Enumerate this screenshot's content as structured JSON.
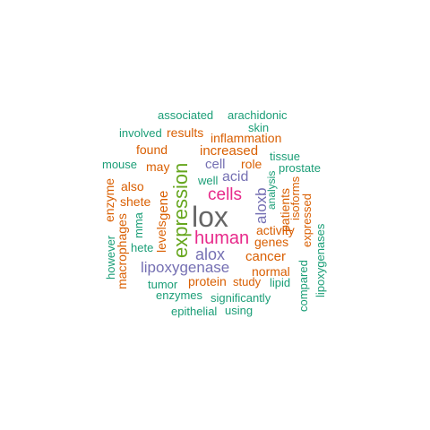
{
  "colors": {
    "green": "#1B9E77",
    "orange": "#D95F02",
    "purple": "#7570B3",
    "pink": "#E7298A",
    "olive": "#66A61E",
    "gray": "#666666"
  },
  "words": [
    {
      "text": "lox",
      "color": "gray"
    },
    {
      "text": "expression",
      "color": "olive"
    },
    {
      "text": "cells",
      "color": "pink"
    },
    {
      "text": "human",
      "color": "pink"
    },
    {
      "text": "alox",
      "color": "purple"
    },
    {
      "text": "aloxb",
      "color": "purple"
    },
    {
      "text": "lipoxygenase",
      "color": "purple"
    },
    {
      "text": "cell",
      "color": "purple"
    },
    {
      "text": "acid",
      "color": "purple"
    },
    {
      "text": "increased",
      "color": "orange"
    },
    {
      "text": "role",
      "color": "orange"
    },
    {
      "text": "genes",
      "color": "orange"
    },
    {
      "text": "activity",
      "color": "orange"
    },
    {
      "text": "cancer",
      "color": "orange"
    },
    {
      "text": "normal",
      "color": "orange"
    },
    {
      "text": "study",
      "color": "orange"
    },
    {
      "text": "protein",
      "color": "orange"
    },
    {
      "text": "found",
      "color": "orange"
    },
    {
      "text": "may",
      "color": "orange"
    },
    {
      "text": "results",
      "color": "orange"
    },
    {
      "text": "inflammation",
      "color": "orange"
    },
    {
      "text": "gene",
      "color": "orange"
    },
    {
      "text": "levels",
      "color": "orange"
    },
    {
      "text": "also",
      "color": "orange"
    },
    {
      "text": "shete",
      "color": "orange"
    },
    {
      "text": "enzyme",
      "color": "orange"
    },
    {
      "text": "macrophages",
      "color": "orange"
    },
    {
      "text": "patients",
      "color": "orange"
    },
    {
      "text": "expressed",
      "color": "orange"
    },
    {
      "text": "isoforms",
      "color": "orange"
    },
    {
      "text": "associated",
      "color": "green"
    },
    {
      "text": "arachidonic",
      "color": "green"
    },
    {
      "text": "skin",
      "color": "green"
    },
    {
      "text": "involved",
      "color": "green"
    },
    {
      "text": "tissue",
      "color": "green"
    },
    {
      "text": "mouse",
      "color": "green"
    },
    {
      "text": "prostate",
      "color": "green"
    },
    {
      "text": "well",
      "color": "green"
    },
    {
      "text": "analysis",
      "color": "green"
    },
    {
      "text": "mma",
      "color": "green"
    },
    {
      "text": "hete",
      "color": "green"
    },
    {
      "text": "however",
      "color": "green"
    },
    {
      "text": "tumor",
      "color": "green"
    },
    {
      "text": "enzymes",
      "color": "green"
    },
    {
      "text": "significantly",
      "color": "green"
    },
    {
      "text": "lipid",
      "color": "green"
    },
    {
      "text": "epithelial",
      "color": "green"
    },
    {
      "text": "using",
      "color": "green"
    },
    {
      "text": "compared",
      "color": "green"
    },
    {
      "text": "lipoxygenases",
      "color": "green"
    }
  ]
}
